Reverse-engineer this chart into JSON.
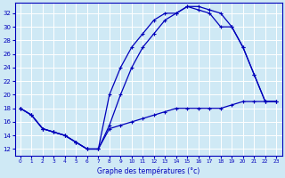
{
  "title": "Graphe des températures (°c)",
  "bg_color": "#cfe9f5",
  "grid_color": "#ffffff",
  "line_color": "#0000bb",
  "xlim": [
    -0.5,
    23.5
  ],
  "ylim": [
    11,
    33.5
  ],
  "xticks": [
    0,
    1,
    2,
    3,
    4,
    5,
    6,
    7,
    8,
    9,
    10,
    11,
    12,
    13,
    14,
    15,
    16,
    17,
    18,
    19,
    20,
    21,
    22,
    23
  ],
  "yticks": [
    12,
    14,
    16,
    18,
    20,
    22,
    24,
    26,
    28,
    30,
    32
  ],
  "line1_x": [
    0,
    1,
    2,
    3,
    4,
    5,
    6,
    7,
    8,
    9,
    10,
    11,
    12,
    13,
    14,
    15,
    16,
    17,
    18,
    19,
    20,
    21,
    22,
    23
  ],
  "line1_y": [
    18,
    17,
    15,
    14.5,
    14,
    13,
    12,
    12,
    15.5,
    20,
    24,
    27,
    29,
    31,
    32,
    33,
    33,
    32.5,
    32,
    30,
    27,
    23,
    19,
    19
  ],
  "line2_x": [
    0,
    1,
    2,
    3,
    4,
    5,
    6,
    7,
    8,
    9,
    10,
    11,
    12,
    13,
    14,
    15,
    16,
    17,
    18,
    19,
    20,
    21,
    22,
    23
  ],
  "line2_y": [
    18,
    17,
    15,
    14.5,
    14,
    13,
    12,
    12,
    20,
    24,
    27,
    29,
    31,
    32,
    32,
    33,
    32.5,
    32,
    30,
    30,
    27,
    23,
    19,
    19
  ],
  "line3_x": [
    0,
    1,
    2,
    3,
    4,
    5,
    6,
    7,
    8,
    9,
    10,
    11,
    12,
    13,
    14,
    15,
    16,
    17,
    18,
    19,
    20,
    21,
    22,
    23
  ],
  "line3_y": [
    18,
    17,
    15,
    14.5,
    14,
    13,
    12,
    12,
    15,
    15.5,
    16,
    16.5,
    17,
    17.5,
    18,
    18,
    18,
    18,
    18,
    18.5,
    19,
    19,
    19,
    19
  ]
}
